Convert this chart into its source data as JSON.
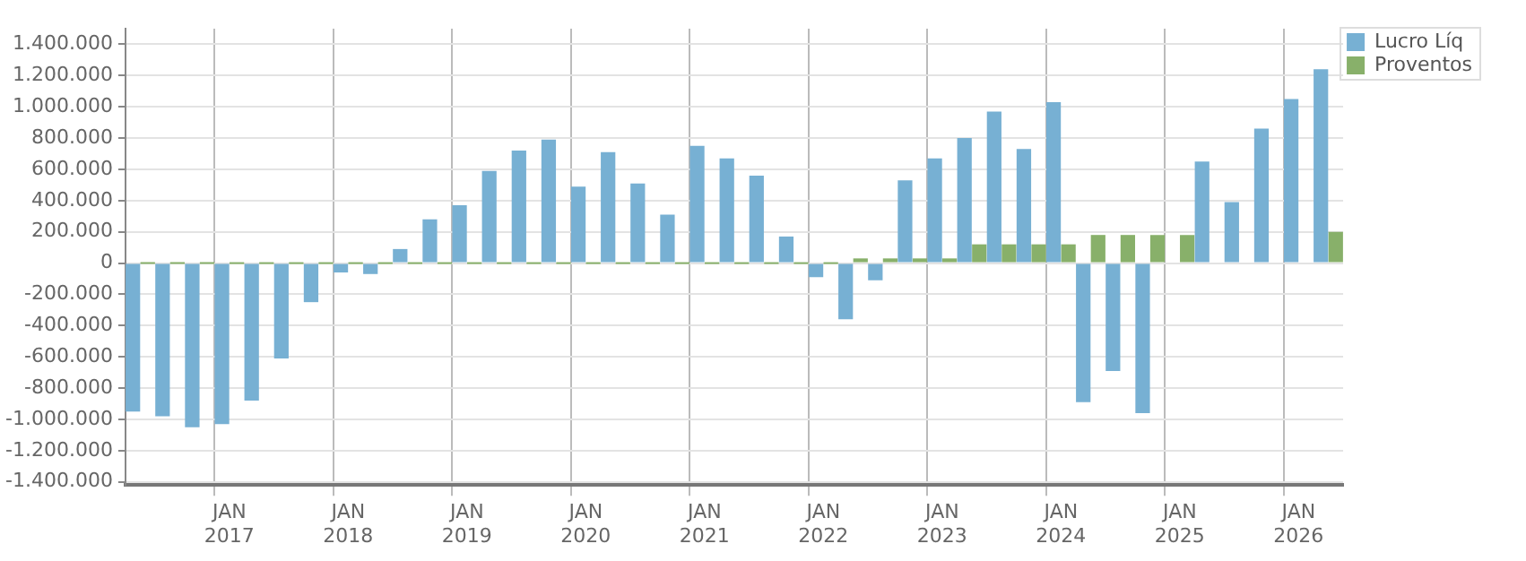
{
  "chart_data": {
    "type": "bar",
    "categories": [
      null,
      null,
      null,
      "JAN 2017",
      null,
      null,
      null,
      "JAN 2018",
      null,
      null,
      null,
      "JAN 2019",
      null,
      null,
      null,
      "JAN 2020",
      null,
      null,
      null,
      "JAN 2021",
      null,
      null,
      null,
      "JAN 2022",
      null,
      null,
      null,
      "JAN 2023",
      null,
      null,
      null,
      "JAN 2024",
      null,
      null,
      null,
      "JAN 2025",
      null,
      null,
      null,
      "JAN 2026",
      null
    ],
    "series": [
      {
        "name": "Lucro Líq",
        "color": "#77b0d3",
        "values": [
          -950000,
          -980000,
          -1050000,
          -1030000,
          -880000,
          -610000,
          -250000,
          -60000,
          -70000,
          90000,
          280000,
          370000,
          590000,
          720000,
          790000,
          490000,
          710000,
          510000,
          310000,
          750000,
          670000,
          560000,
          170000,
          -90000,
          -360000,
          -110000,
          530000,
          670000,
          800000,
          970000,
          730000,
          1030000,
          -890000,
          -690000,
          -960000,
          null,
          650000,
          390000,
          860000,
          1050000,
          1240000
        ]
      },
      {
        "name": "Proventos",
        "color": "#88b06a",
        "values": [
          0,
          0,
          0,
          0,
          0,
          0,
          0,
          0,
          0,
          0,
          0,
          0,
          0,
          0,
          0,
          0,
          0,
          0,
          0,
          0,
          0,
          0,
          0,
          0,
          30000,
          30000,
          30000,
          30000,
          120000,
          120000,
          120000,
          120000,
          180000,
          180000,
          180000,
          180000,
          null,
          null,
          null,
          null,
          200000
        ]
      }
    ],
    "ylim": [
      -1420000,
      1500000
    ],
    "yticks": [
      {
        "value": -1400000,
        "label": "-1.400.000"
      },
      {
        "value": -1200000,
        "label": "-1.200.000"
      },
      {
        "value": -1000000,
        "label": "-1.000.000"
      },
      {
        "value": -800000,
        "label": "-800.000"
      },
      {
        "value": -600000,
        "label": "-600.000"
      },
      {
        "value": -400000,
        "label": "-400.000"
      },
      {
        "value": -200000,
        "label": "-200.000"
      },
      {
        "value": 0,
        "label": "0"
      },
      {
        "value": 200000,
        "label": "200.000"
      },
      {
        "value": 400000,
        "label": "400.000"
      },
      {
        "value": 600000,
        "label": "600.000"
      },
      {
        "value": 800000,
        "label": "800.000"
      },
      {
        "value": 1000000,
        "label": "1.000.000"
      },
      {
        "value": 1200000,
        "label": "1.200.000"
      },
      {
        "value": 1400000,
        "label": "1.400.000"
      }
    ],
    "grid": true,
    "legend": "top right"
  }
}
